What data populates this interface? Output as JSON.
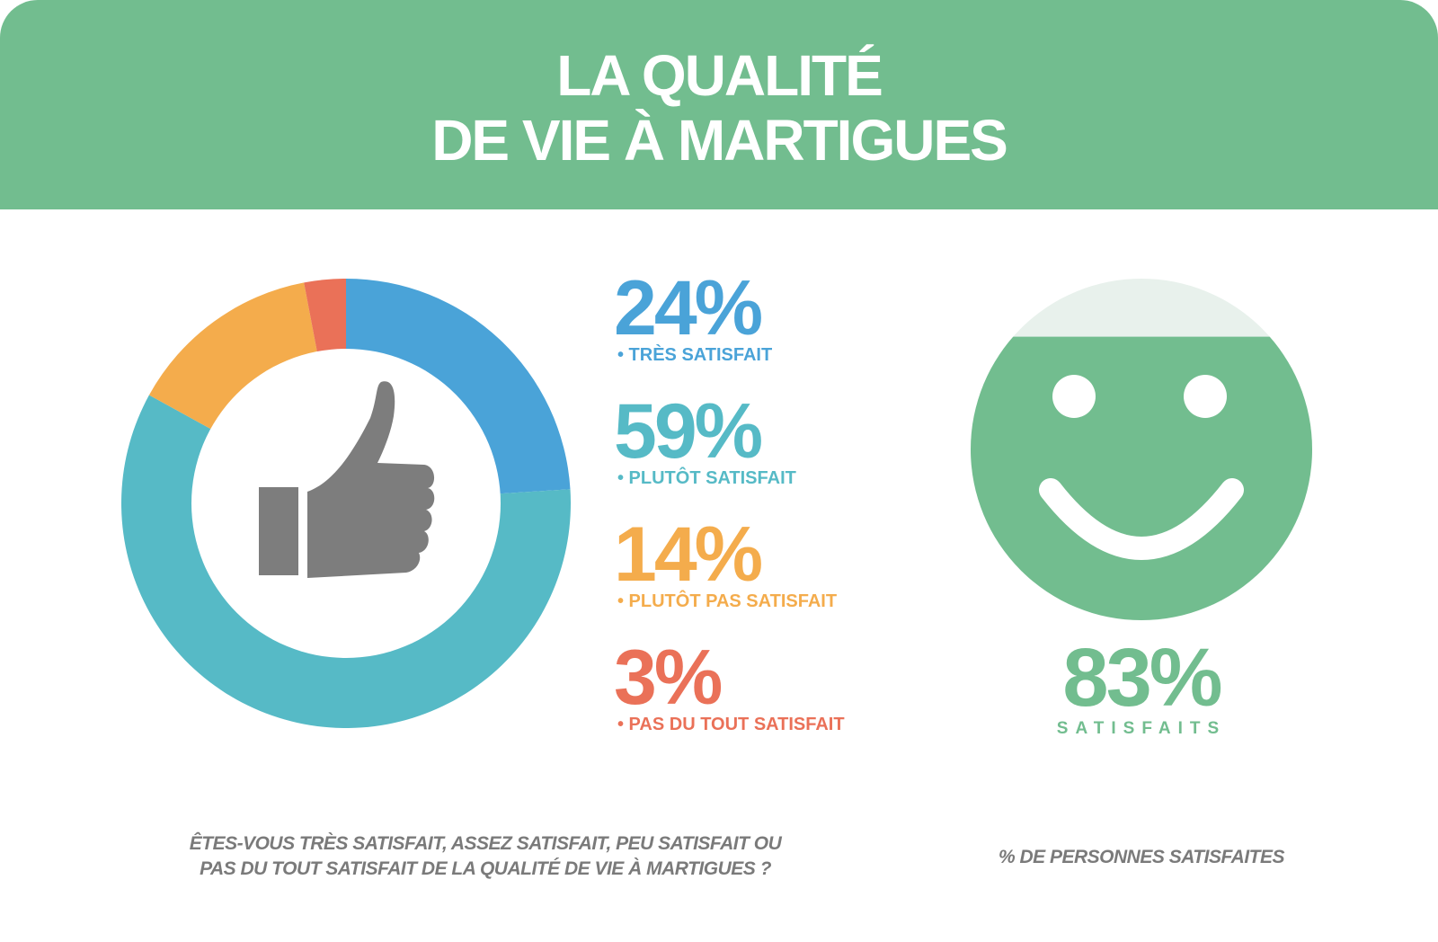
{
  "header": {
    "title_line1": "LA QUALITÉ",
    "title_line2": "DE VIE À MARTIGUES"
  },
  "chart_data": {
    "type": "pie",
    "title": "",
    "series": [
      {
        "name": "• TRÈS SATISFAIT",
        "value": 24,
        "label": "24%",
        "color": "#4aa3d8"
      },
      {
        "name": "• PLUTÔT SATISFAIT",
        "value": 59,
        "label": "59%",
        "color": "#56bac6"
      },
      {
        "name": "• PLUTÔT PAS SATISFAIT",
        "value": 14,
        "label": "14%",
        "color": "#f4ac4c"
      },
      {
        "name": "• PAS DU TOUT SATISFAIT",
        "value": 3,
        "label": "3%",
        "color": "#ea7158"
      }
    ],
    "legend_placement": "right",
    "center_icon": "thumbs-up-icon"
  },
  "summary": {
    "value": "83%",
    "label": "SATISFAITS",
    "fill_fraction": 0.83,
    "icon": "smiley-face-icon",
    "color": "#72bd8f",
    "empty_color": "#e8f1ec"
  },
  "footer": {
    "question_line1": "ÊTES-VOUS TRÈS SATISFAIT, ASSEZ SATISFAIT, PEU SATISFAIT OU",
    "question_line2": "PAS DU TOUT SATISFAIT DE LA QUALITÉ DE VIE À MARTIGUES ?",
    "right_caption": "% DE PERSONNES SATISFAITES"
  }
}
